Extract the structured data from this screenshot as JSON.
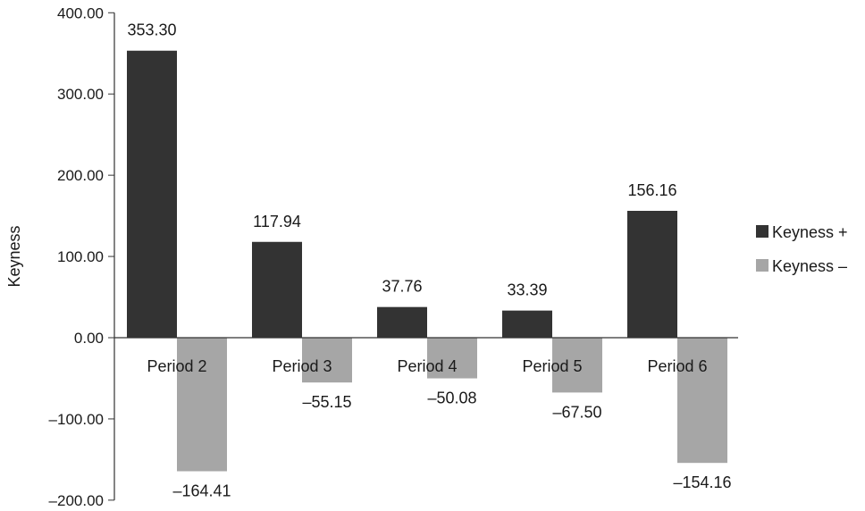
{
  "chart_data": {
    "type": "bar",
    "ylabel": "Keyness",
    "categories": [
      "Period 2",
      "Period 3",
      "Period 4",
      "Period 5",
      "Period 6"
    ],
    "series": [
      {
        "name": "Keyness +",
        "values": [
          353.3,
          117.94,
          37.76,
          33.39,
          156.16
        ],
        "color": "#333333"
      },
      {
        "name": "Keyness –",
        "values": [
          -164.41,
          -55.15,
          -50.08,
          -67.5,
          -154.16
        ],
        "color": "#a6a6a6"
      }
    ],
    "value_labels": [
      [
        "353.30",
        "117.94",
        "37.76",
        "33.39",
        "156.16"
      ],
      [
        "–164.41",
        "–55.15",
        "–50.08",
        "–67.50",
        "–154.16"
      ]
    ],
    "yticks": [
      "400.00",
      "300.00",
      "200.00",
      "100.00",
      "0.00",
      "–100.00",
      "–200.00"
    ],
    "ytick_values": [
      400,
      300,
      200,
      100,
      0,
      -100,
      -200
    ],
    "ylim": [
      -200,
      400
    ],
    "legend_position": "right",
    "grid": false
  }
}
